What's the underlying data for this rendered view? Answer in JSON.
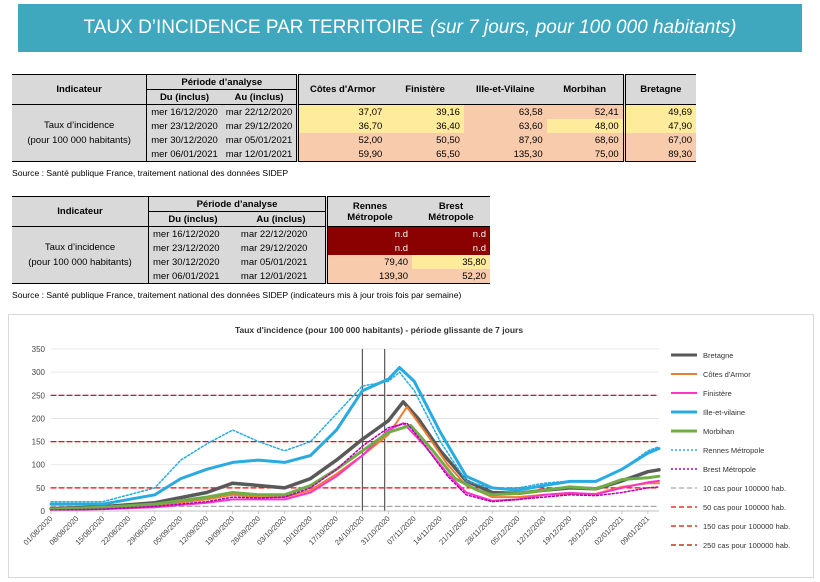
{
  "banner": {
    "title": "TAUX D’INCIDENCE PAR TERRITOIRE",
    "subtitle": "(sur 7 jours, pour 100 000 habitants)"
  },
  "table1": {
    "h_indicateur": "Indicateur",
    "h_periode": "Période d’analyse",
    "h_du": "Du (inclus)",
    "h_au": "Au (inclus)",
    "cols": [
      "Côtes d'Armor",
      "Finistère",
      "Ille-et-Vilaine",
      "Morbihan",
      "Bretagne"
    ],
    "indicator_line1": "Taux d’incidence",
    "indicator_line2": "(pour 100 000 habitants)",
    "rows": [
      {
        "du": "mer 16/12/2020",
        "au": "mar 22/12/2020",
        "vals": [
          "37,07",
          "39,16",
          "63,58",
          "52,41",
          "49,69"
        ]
      },
      {
        "du": "mer 23/12/2020",
        "au": "mar 29/12/2020",
        "vals": [
          "36,70",
          "36,40",
          "63,60",
          "48,00",
          "47,90"
        ]
      },
      {
        "du": "mer 30/12/2020",
        "au": "mar 05/01/2021",
        "vals": [
          "52,00",
          "50,50",
          "87,90",
          "68,60",
          "67,00"
        ]
      },
      {
        "du": "mer 06/01/2021",
        "au": "mar 12/01/2021",
        "vals": [
          "59,90",
          "65,50",
          "135,30",
          "75,00",
          "89,30"
        ]
      }
    ],
    "colors": [
      [
        "#ffeb9c",
        "#ffeb9c",
        "#f8cbad",
        "#f8cbad",
        "#ffeb9c"
      ],
      [
        "#ffeb9c",
        "#ffeb9c",
        "#f8cbad",
        "#ffeb9c",
        "#ffeb9c"
      ],
      [
        "#f8cbad",
        "#f8cbad",
        "#f8cbad",
        "#f8cbad",
        "#f8cbad"
      ],
      [
        "#f8cbad",
        "#f8cbad",
        "#f8cbad",
        "#f8cbad",
        "#f8cbad"
      ]
    ]
  },
  "source1": "Source  : Santé publique France, traitement national des données SIDEP",
  "table2": {
    "h_indicateur": "Indicateur",
    "h_periode": "Période d’analyse",
    "h_du": "Du (inclus)",
    "h_au": "Au (inclus)",
    "col1_line1": "Rennes",
    "col1_line2": "Métropole",
    "col2_line1": "Brest",
    "col2_line2": "Métropole",
    "indicator_line1": "Taux d’incidence",
    "indicator_line2": "(pour 100 000 habitants)",
    "rows": [
      {
        "du": "mer 16/12/2020",
        "au": "mar 22/12/2020",
        "vals": [
          "n.d",
          "n.d"
        ]
      },
      {
        "du": "mer 23/12/2020",
        "au": "mar 29/12/2020",
        "vals": [
          "n.d",
          "n.d"
        ]
      },
      {
        "du": "mer 30/12/2020",
        "au": "mar 05/01/2021",
        "vals": [
          "79,40",
          "35,80"
        ]
      },
      {
        "du": "mer 06/01/2021",
        "au": "mar 12/01/2021",
        "vals": [
          "139,30",
          "52,20"
        ]
      }
    ],
    "colors": [
      [
        "#8b0000",
        "#8b0000"
      ],
      [
        "#8b0000",
        "#8b0000"
      ],
      [
        "#f8cbad",
        "#ffeb9c"
      ],
      [
        "#f8cbad",
        "#f8cbad"
      ]
    ]
  },
  "source2": "Source  : Santé publique France, traitement national des données SIDEP (indicateurs mis à jour trois fois par semaine)",
  "chart_data": {
    "type": "line",
    "title": "Taux d'incidence (pour 100 000 habitants) - période glissante de 7 jours",
    "ylim": [
      0,
      350
    ],
    "yticks": [
      0,
      50,
      100,
      150,
      200,
      250,
      300,
      350
    ],
    "x_start": "01/08/2020",
    "x_end": "12/01/2021",
    "xtick_labels": [
      "01/08/2020",
      "08/08/2020",
      "15/08/2020",
      "22/08/2020",
      "29/08/2020",
      "05/09/2020",
      "12/09/2020",
      "19/09/2020",
      "26/09/2020",
      "03/10/2020",
      "10/10/2020",
      "17/10/2020",
      "24/10/2020",
      "31/10/2020",
      "07/11/2020",
      "14/11/2020",
      "21/11/2020",
      "28/11/2020",
      "05/12/2020",
      "12/12/2020",
      "19/12/2020",
      "26/12/2020",
      "02/01/2021",
      "09/01/2021"
    ],
    "vertical_markers": [
      "24/10/2020",
      "30/10/2020"
    ],
    "grid": "horizontal",
    "legend_position": "right",
    "series": [
      {
        "name": "Bretagne",
        "color": "#595959",
        "dash": "",
        "width": 3.5,
        "points": [
          [
            "01/08/2020",
            5
          ],
          [
            "15/08/2020",
            9
          ],
          [
            "29/08/2020",
            18
          ],
          [
            "12/09/2020",
            40
          ],
          [
            "19/09/2020",
            60
          ],
          [
            "26/09/2020",
            55
          ],
          [
            "03/10/2020",
            50
          ],
          [
            "10/10/2020",
            70
          ],
          [
            "17/10/2020",
            110
          ],
          [
            "24/10/2020",
            155
          ],
          [
            "31/10/2020",
            195
          ],
          [
            "04/11/2020",
            236
          ],
          [
            "08/11/2020",
            200
          ],
          [
            "14/11/2020",
            130
          ],
          [
            "21/11/2020",
            65
          ],
          [
            "28/11/2020",
            40
          ],
          [
            "05/12/2020",
            38
          ],
          [
            "12/12/2020",
            45
          ],
          [
            "19/12/2020",
            50
          ],
          [
            "26/12/2020",
            48
          ],
          [
            "02/01/2021",
            65
          ],
          [
            "09/01/2021",
            85
          ],
          [
            "12/01/2021",
            89
          ]
        ]
      },
      {
        "name": "Côtes d'Armor",
        "color": "#ed7d31",
        "dash": "",
        "width": 2,
        "points": [
          [
            "01/08/2020",
            3
          ],
          [
            "15/08/2020",
            6
          ],
          [
            "29/08/2020",
            12
          ],
          [
            "12/09/2020",
            25
          ],
          [
            "19/09/2020",
            35
          ],
          [
            "26/09/2020",
            30
          ],
          [
            "03/10/2020",
            30
          ],
          [
            "10/10/2020",
            45
          ],
          [
            "17/10/2020",
            80
          ],
          [
            "24/10/2020",
            120
          ],
          [
            "31/10/2020",
            165
          ],
          [
            "05/11/2020",
            225
          ],
          [
            "10/11/2020",
            170
          ],
          [
            "16/11/2020",
            100
          ],
          [
            "21/11/2020",
            55
          ],
          [
            "28/11/2020",
            30
          ],
          [
            "05/12/2020",
            30
          ],
          [
            "12/12/2020",
            35
          ],
          [
            "19/12/2020",
            37
          ],
          [
            "26/12/2020",
            37
          ],
          [
            "02/01/2021",
            52
          ],
          [
            "09/01/2021",
            60
          ],
          [
            "12/01/2021",
            60
          ]
        ]
      },
      {
        "name": "Finistère",
        "color": "#ff33cc",
        "dash": "",
        "width": 2,
        "points": [
          [
            "01/08/2020",
            2
          ],
          [
            "15/08/2020",
            4
          ],
          [
            "29/08/2020",
            8
          ],
          [
            "12/09/2020",
            18
          ],
          [
            "19/09/2020",
            25
          ],
          [
            "26/09/2020",
            25
          ],
          [
            "03/10/2020",
            25
          ],
          [
            "10/10/2020",
            40
          ],
          [
            "17/10/2020",
            75
          ],
          [
            "24/10/2020",
            120
          ],
          [
            "31/10/2020",
            175
          ],
          [
            "04/11/2020",
            190
          ],
          [
            "10/11/2020",
            140
          ],
          [
            "16/11/2020",
            80
          ],
          [
            "21/11/2020",
            40
          ],
          [
            "28/11/2020",
            22
          ],
          [
            "05/12/2020",
            25
          ],
          [
            "12/12/2020",
            35
          ],
          [
            "19/12/2020",
            39
          ],
          [
            "26/12/2020",
            36
          ],
          [
            "02/01/2021",
            50
          ],
          [
            "09/01/2021",
            62
          ],
          [
            "12/01/2021",
            65
          ]
        ]
      },
      {
        "name": "Ille-et-vilaine",
        "color": "#29abe2",
        "dash": "",
        "width": 3,
        "points": [
          [
            "01/08/2020",
            15
          ],
          [
            "15/08/2020",
            15
          ],
          [
            "29/08/2020",
            35
          ],
          [
            "05/09/2020",
            70
          ],
          [
            "12/09/2020",
            90
          ],
          [
            "19/09/2020",
            105
          ],
          [
            "26/09/2020",
            110
          ],
          [
            "03/10/2020",
            105
          ],
          [
            "10/10/2020",
            120
          ],
          [
            "17/10/2020",
            175
          ],
          [
            "24/10/2020",
            260
          ],
          [
            "31/10/2020",
            285
          ],
          [
            "03/11/2020",
            310
          ],
          [
            "07/11/2020",
            280
          ],
          [
            "14/11/2020",
            170
          ],
          [
            "21/11/2020",
            75
          ],
          [
            "28/11/2020",
            50
          ],
          [
            "05/12/2020",
            45
          ],
          [
            "12/12/2020",
            55
          ],
          [
            "19/12/2020",
            64
          ],
          [
            "26/12/2020",
            64
          ],
          [
            "02/01/2021",
            90
          ],
          [
            "09/01/2021",
            125
          ],
          [
            "12/01/2021",
            135
          ]
        ]
      },
      {
        "name": "Morbihan",
        "color": "#70ad47",
        "dash": "",
        "width": 3,
        "points": [
          [
            "01/08/2020",
            4
          ],
          [
            "15/08/2020",
            8
          ],
          [
            "29/08/2020",
            15
          ],
          [
            "12/09/2020",
            30
          ],
          [
            "19/09/2020",
            40
          ],
          [
            "26/09/2020",
            35
          ],
          [
            "03/10/2020",
            35
          ],
          [
            "10/10/2020",
            55
          ],
          [
            "17/10/2020",
            90
          ],
          [
            "24/10/2020",
            130
          ],
          [
            "31/10/2020",
            170
          ],
          [
            "06/11/2020",
            185
          ],
          [
            "12/11/2020",
            130
          ],
          [
            "18/11/2020",
            70
          ],
          [
            "24/11/2020",
            45
          ],
          [
            "28/11/2020",
            35
          ],
          [
            "05/12/2020",
            38
          ],
          [
            "12/12/2020",
            45
          ],
          [
            "19/12/2020",
            52
          ],
          [
            "26/12/2020",
            48
          ],
          [
            "02/01/2021",
            68
          ],
          [
            "09/01/2021",
            72
          ],
          [
            "12/01/2021",
            75
          ]
        ]
      },
      {
        "name": "Rennes Métropole",
        "color": "#29abe2",
        "dash": "2,2",
        "width": 1.5,
        "points": [
          [
            "01/08/2020",
            20
          ],
          [
            "15/08/2020",
            20
          ],
          [
            "29/08/2020",
            50
          ],
          [
            "05/09/2020",
            110
          ],
          [
            "12/09/2020",
            145
          ],
          [
            "19/09/2020",
            175
          ],
          [
            "26/09/2020",
            150
          ],
          [
            "03/10/2020",
            130
          ],
          [
            "10/10/2020",
            150
          ],
          [
            "17/10/2020",
            210
          ],
          [
            "24/10/2020",
            270
          ],
          [
            "31/10/2020",
            280
          ],
          [
            "03/11/2020",
            300
          ],
          [
            "07/11/2020",
            260
          ],
          [
            "14/11/2020",
            150
          ],
          [
            "21/11/2020",
            65
          ],
          [
            "28/11/2020",
            48
          ],
          [
            "05/12/2020",
            50
          ],
          [
            "12/12/2020",
            60
          ],
          [
            "19/12/2020",
            65
          ],
          [
            "26/12/2020",
            65
          ],
          [
            "02/01/2021",
            90
          ],
          [
            "09/01/2021",
            130
          ],
          [
            "12/01/2021",
            139
          ]
        ]
      },
      {
        "name": "Brest Métropole",
        "color": "#b000b0",
        "dash": "2,2",
        "width": 1.5,
        "points": [
          [
            "01/08/2020",
            2
          ],
          [
            "15/08/2020",
            4
          ],
          [
            "29/08/2020",
            10
          ],
          [
            "12/09/2020",
            20
          ],
          [
            "19/09/2020",
            30
          ],
          [
            "26/09/2020",
            28
          ],
          [
            "03/10/2020",
            30
          ],
          [
            "10/10/2020",
            50
          ],
          [
            "17/10/2020",
            90
          ],
          [
            "24/10/2020",
            140
          ],
          [
            "31/10/2020",
            180
          ],
          [
            "05/11/2020",
            190
          ],
          [
            "10/11/2020",
            140
          ],
          [
            "16/11/2020",
            75
          ],
          [
            "21/11/2020",
            35
          ],
          [
            "28/11/2020",
            20
          ],
          [
            "05/12/2020",
            25
          ],
          [
            "12/12/2020",
            30
          ],
          [
            "19/12/2020",
            35
          ],
          [
            "26/12/2020",
            33
          ],
          [
            "02/01/2021",
            40
          ],
          [
            "09/01/2021",
            50
          ],
          [
            "12/01/2021",
            52
          ]
        ]
      },
      {
        "name": "10 cas pour 100000 hab.",
        "color": "#a6a6a6",
        "dash": "5,3",
        "width": 1.2,
        "points": [
          [
            "01/08/2020",
            10
          ],
          [
            "12/01/2021",
            10
          ]
        ]
      },
      {
        "name": "50 cas pour 100000 hab.",
        "color": "#ff0000",
        "dash": "5,3",
        "width": 1.2,
        "points": [
          [
            "01/08/2020",
            50
          ],
          [
            "12/01/2021",
            50
          ]
        ]
      },
      {
        "name": "150 cas pour 100000 hab.",
        "color": "#ff0000",
        "dash": "5,3",
        "width": 1.2,
        "points": [
          [
            "01/08/2020",
            150
          ],
          [
            "12/01/2021",
            150
          ]
        ]
      },
      {
        "name": "250 cas pour 100000 hab.",
        "color": "#c00000",
        "dash": "5,3",
        "width": 1.2,
        "points": [
          [
            "01/08/2020",
            250
          ],
          [
            "12/01/2021",
            250
          ]
        ]
      }
    ]
  }
}
